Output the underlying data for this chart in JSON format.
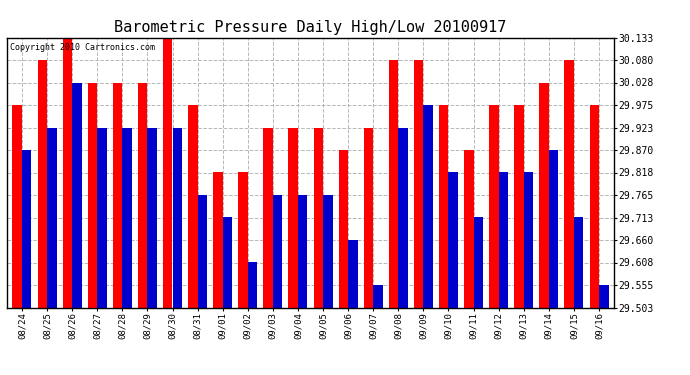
{
  "title": "Barometric Pressure Daily High/Low 20100917",
  "copyright": "Copyright 2010 Cartronics.com",
  "dates": [
    "08/24",
    "08/25",
    "08/26",
    "08/27",
    "08/28",
    "08/29",
    "08/30",
    "08/31",
    "09/01",
    "09/02",
    "09/03",
    "09/04",
    "09/05",
    "09/06",
    "09/07",
    "09/08",
    "09/09",
    "09/10",
    "09/11",
    "09/12",
    "09/13",
    "09/14",
    "09/15",
    "09/16"
  ],
  "highs": [
    29.975,
    30.08,
    30.133,
    30.028,
    30.028,
    30.028,
    30.133,
    29.975,
    29.818,
    29.818,
    29.923,
    29.923,
    29.923,
    29.87,
    29.923,
    30.08,
    30.08,
    29.975,
    29.87,
    29.975,
    29.975,
    30.028,
    30.08,
    29.975
  ],
  "lows": [
    29.87,
    29.923,
    30.028,
    29.923,
    29.923,
    29.923,
    29.923,
    29.765,
    29.713,
    29.608,
    29.765,
    29.765,
    29.765,
    29.66,
    29.555,
    29.923,
    29.975,
    29.818,
    29.713,
    29.818,
    29.818,
    29.87,
    29.713,
    29.555
  ],
  "ymin": 29.503,
  "ymax": 30.133,
  "yticks": [
    29.503,
    29.555,
    29.608,
    29.66,
    29.713,
    29.765,
    29.818,
    29.87,
    29.923,
    29.975,
    30.028,
    30.08,
    30.133
  ],
  "high_color": "#ff0000",
  "low_color": "#0000cc",
  "bg_color": "#ffffff",
  "grid_color": "#b0b0b0",
  "title_fontsize": 11,
  "bar_width": 0.38
}
